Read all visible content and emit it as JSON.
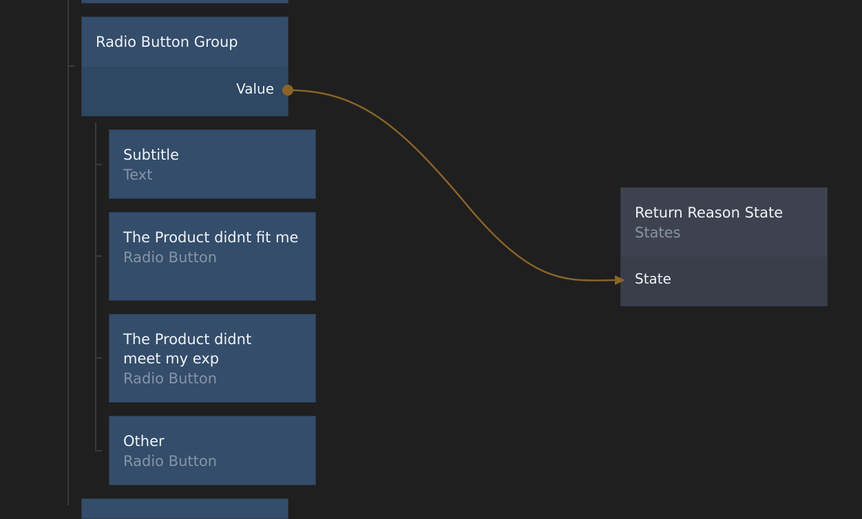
{
  "nodes": {
    "radio_group": {
      "title": "Radio Button Group",
      "output_port": "Value"
    },
    "subtitle": {
      "title": "Subtitle",
      "type": "Text"
    },
    "option1": {
      "title": "The Product didnt fit me",
      "type": "Radio Button"
    },
    "option2": {
      "title": "The Product didnt meet my exp",
      "type": "Radio Button"
    },
    "option3": {
      "title": "Other",
      "type": "Radio Button"
    },
    "state": {
      "title": "Return Reason State",
      "type": "States",
      "input_port": "State"
    }
  },
  "colors": {
    "background": "#1f1f1f",
    "ui_node": "#334d6b",
    "state_node": "#3e4250",
    "connection": "#8a6428"
  }
}
